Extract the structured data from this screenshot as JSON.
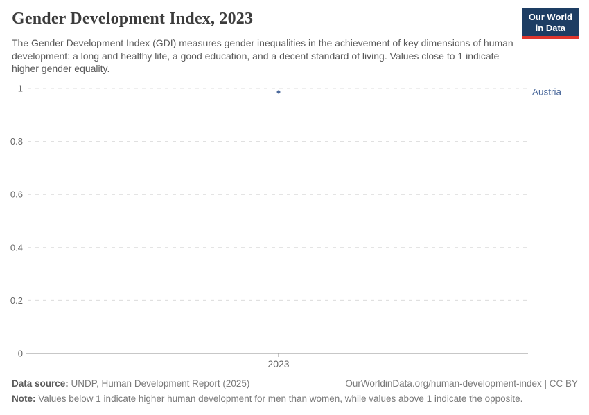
{
  "header": {
    "title": "Gender Development Index, 2023",
    "subtitle": "The Gender Development Index (GDI) measures gender inequalities in the achievement of key dimensions of human development: a long and healthy life, a good education, and a decent standard of living. Values close to 1 indicate higher gender equality.",
    "logo": {
      "line1": "Our World",
      "line2": "in Data",
      "background_color": "#1d3d63",
      "underline_color": "#e0362d"
    }
  },
  "chart_data": {
    "type": "scatter",
    "title": "Gender Development Index, 2023",
    "x": [
      2023
    ],
    "xtick_labels": [
      "2023"
    ],
    "series": [
      {
        "name": "Austria",
        "values": [
          0.987
        ]
      }
    ],
    "ylim": [
      0,
      1
    ],
    "yticks": [
      0,
      0.2,
      0.4,
      0.6,
      0.8,
      1
    ],
    "ytick_labels": [
      "0",
      "0.2",
      "0.4",
      "0.6",
      "0.8",
      "1"
    ],
    "xlabel": "",
    "ylabel": "",
    "grid": "horizontal-dashed",
    "legend_position": "right-of-point",
    "colors": {
      "point": "#4c6a9c",
      "entity_label": "#4c6a9c",
      "gridline": "#dcdcdc",
      "axis": "#8f8f8f",
      "tick_label": "#666666"
    }
  },
  "footer": {
    "source_label": "Data source:",
    "source_value": " UNDP, Human Development Report (2025)",
    "link_text": "OurWorldinData.org/human-development-index | CC BY",
    "note_label": "Note:",
    "note_value": " Values below 1 indicate higher human development for men than women, while values above 1 indicate the opposite."
  }
}
